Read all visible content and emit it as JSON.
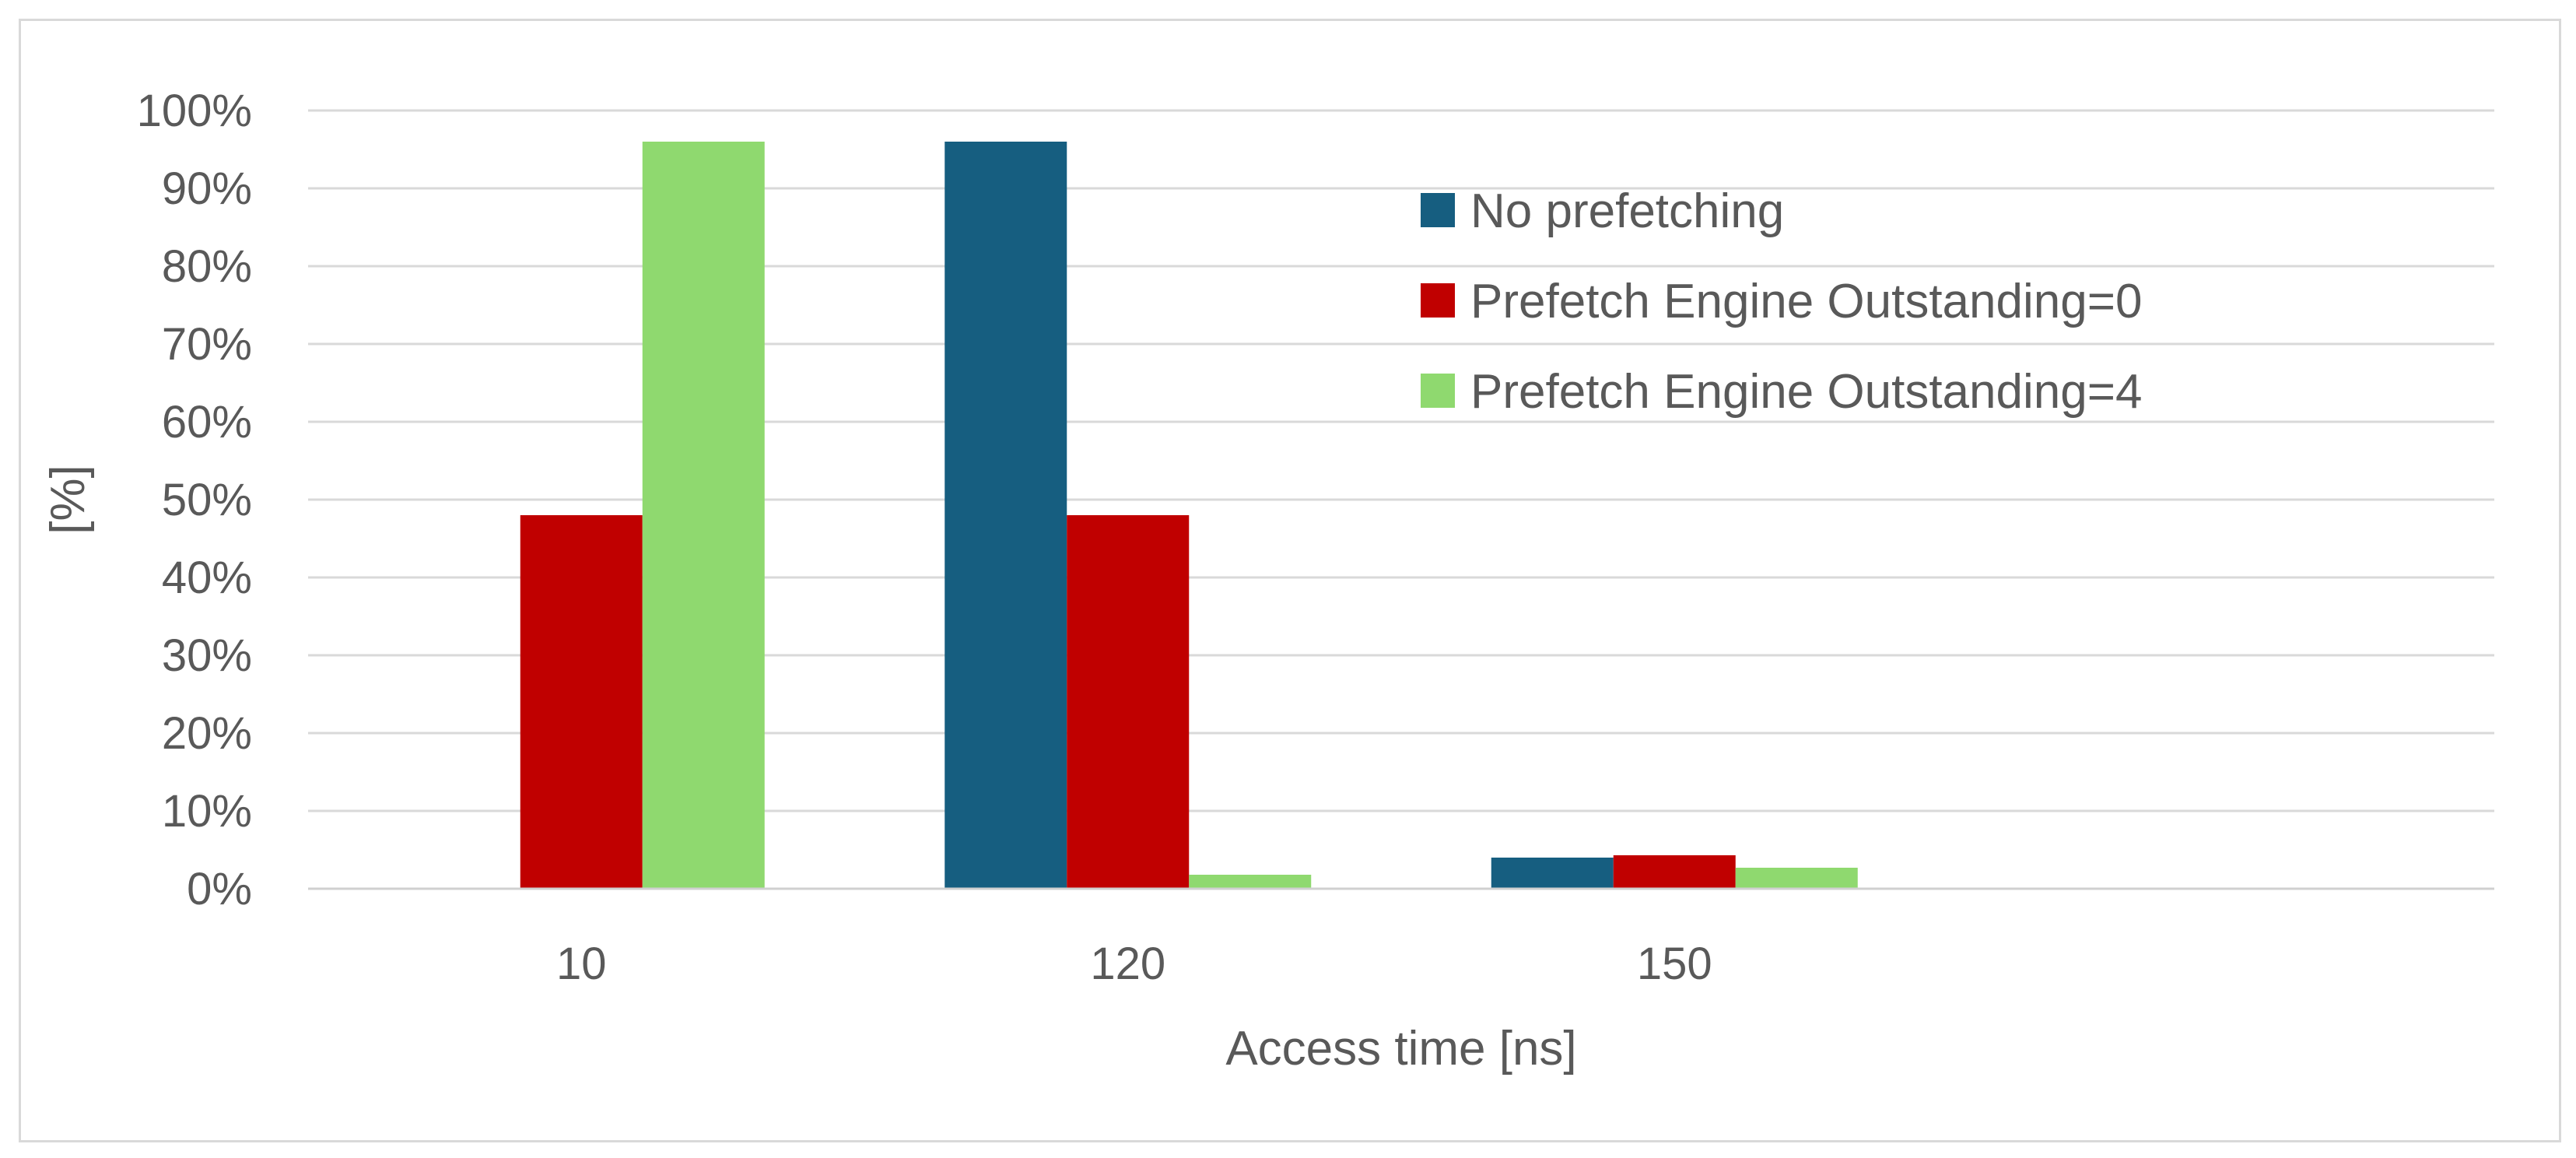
{
  "chart_data": {
    "type": "bar",
    "title": "",
    "xlabel": "Access time [ns]",
    "ylabel": "[%]",
    "categories": [
      "10",
      "120",
      "150",
      ""
    ],
    "ylim": [
      0,
      100
    ],
    "yticks": [
      0,
      10,
      20,
      30,
      40,
      50,
      60,
      70,
      80,
      90,
      100
    ],
    "ytick_labels": [
      "0%",
      "10%",
      "20%",
      "30%",
      "40%",
      "50%",
      "60%",
      "70%",
      "80%",
      "90%",
      "100%"
    ],
    "grid": true,
    "legend_position": "top-right",
    "series": [
      {
        "name": "No prefetching",
        "color": "#165e80",
        "values": [
          0,
          96,
          4,
          0
        ]
      },
      {
        "name": "Prefetch Engine Outstanding=0",
        "color": "#c00000",
        "values": [
          48,
          48,
          4.3,
          0
        ]
      },
      {
        "name": "Prefetch Engine Outstanding=4",
        "color": "#8fd96f",
        "values": [
          96,
          1.8,
          2.7,
          0
        ]
      }
    ]
  }
}
